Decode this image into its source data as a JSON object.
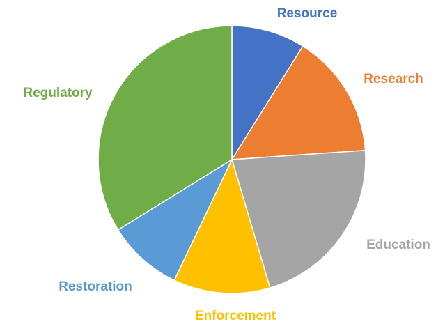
{
  "chart_data": {
    "type": "pie",
    "title": "",
    "slices": [
      {
        "label": "Resource",
        "value": 8.9,
        "color": "#4472c4"
      },
      {
        "label": "Research",
        "value": 15.0,
        "color": "#ed7d31"
      },
      {
        "label": "Education",
        "value": 21.5,
        "color": "#a5a5a5"
      },
      {
        "label": "Enforcement",
        "value": 11.7,
        "color": "#ffc000"
      },
      {
        "label": "Restoration",
        "value": 9.1,
        "color": "#5b9bd5"
      },
      {
        "label": "Regulatory",
        "value": 33.8,
        "color": "#70ad47"
      }
    ],
    "start_angle": "12 o'clock",
    "direction": "clockwise",
    "legend": "none",
    "labels": "category names outside slices, colored to match slice"
  }
}
